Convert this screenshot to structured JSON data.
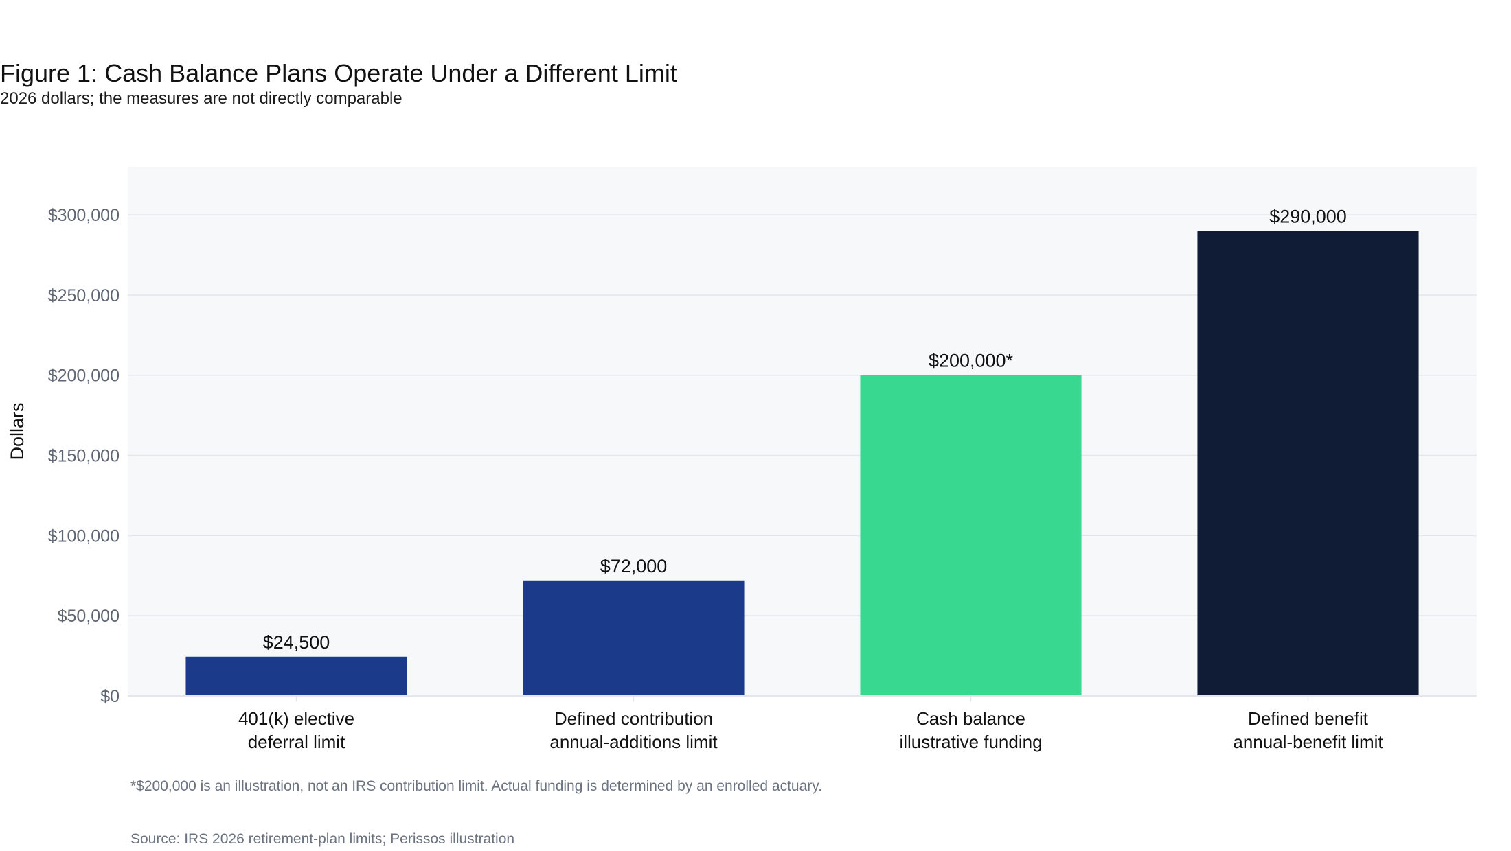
{
  "title": "Figure 1: Cash Balance Plans Operate Under a Different Limit",
  "subtitle": "2026 dollars; the measures are not directly comparable",
  "footnote": "*$200,000 is an illustration, not an IRS contribution limit. Actual funding is determined by an enrolled actuary.",
  "source": "Source: IRS 2026 retirement-plan limits; Perissos illustration",
  "colors": {
    "plot_background": "#f7f8fa",
    "grid": "#e3e6ea",
    "axis_text": "#5f6673",
    "label_text": "#111111"
  },
  "chart_data": {
    "type": "bar",
    "title": "Figure 1: Cash Balance Plans Operate Under a Different Limit",
    "subtitle": "2026 dollars; the measures are not directly comparable",
    "xlabel": "",
    "ylabel": "Dollars",
    "ylim": [
      0,
      330000
    ],
    "grid": true,
    "yticks": [
      0,
      50000,
      100000,
      150000,
      200000,
      250000,
      300000
    ],
    "ytick_labels": [
      "$0",
      "$50,000",
      "$100,000",
      "$150,000",
      "$200,000",
      "$250,000",
      "$300,000"
    ],
    "categories": [
      [
        "401(k) elective",
        "deferral limit"
      ],
      [
        "Defined contribution",
        "annual-additions limit"
      ],
      [
        "Cash balance",
        "illustrative funding"
      ],
      [
        "Defined benefit",
        "annual-benefit limit"
      ]
    ],
    "values": [
      24500,
      72000,
      200000,
      290000
    ],
    "data_labels": [
      "$24,500",
      "$72,000",
      "$200,000*",
      "$290,000"
    ],
    "bar_colors": [
      "#1c3a8a",
      "#1c3a8a",
      "#38d890",
      "#101c36"
    ]
  }
}
